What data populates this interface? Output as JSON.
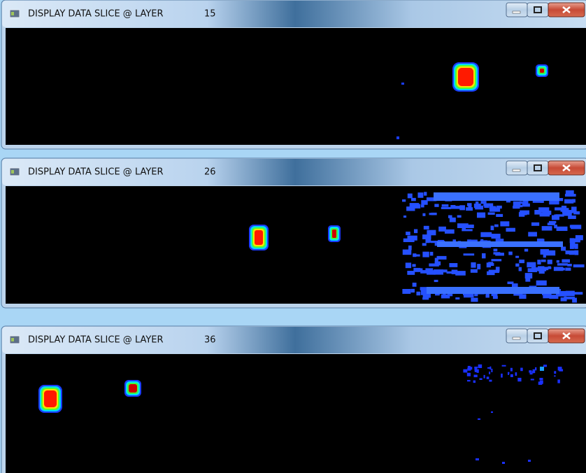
{
  "windows": [
    {
      "title": "DISPLAY DATA SLICE @ LAYER",
      "layer": 15
    },
    {
      "title": "DISPLAY DATA SLICE @ LAYER",
      "layer": 26
    },
    {
      "title": "DISPLAY DATA SLICE @ LAYER",
      "layer": 36
    }
  ]
}
